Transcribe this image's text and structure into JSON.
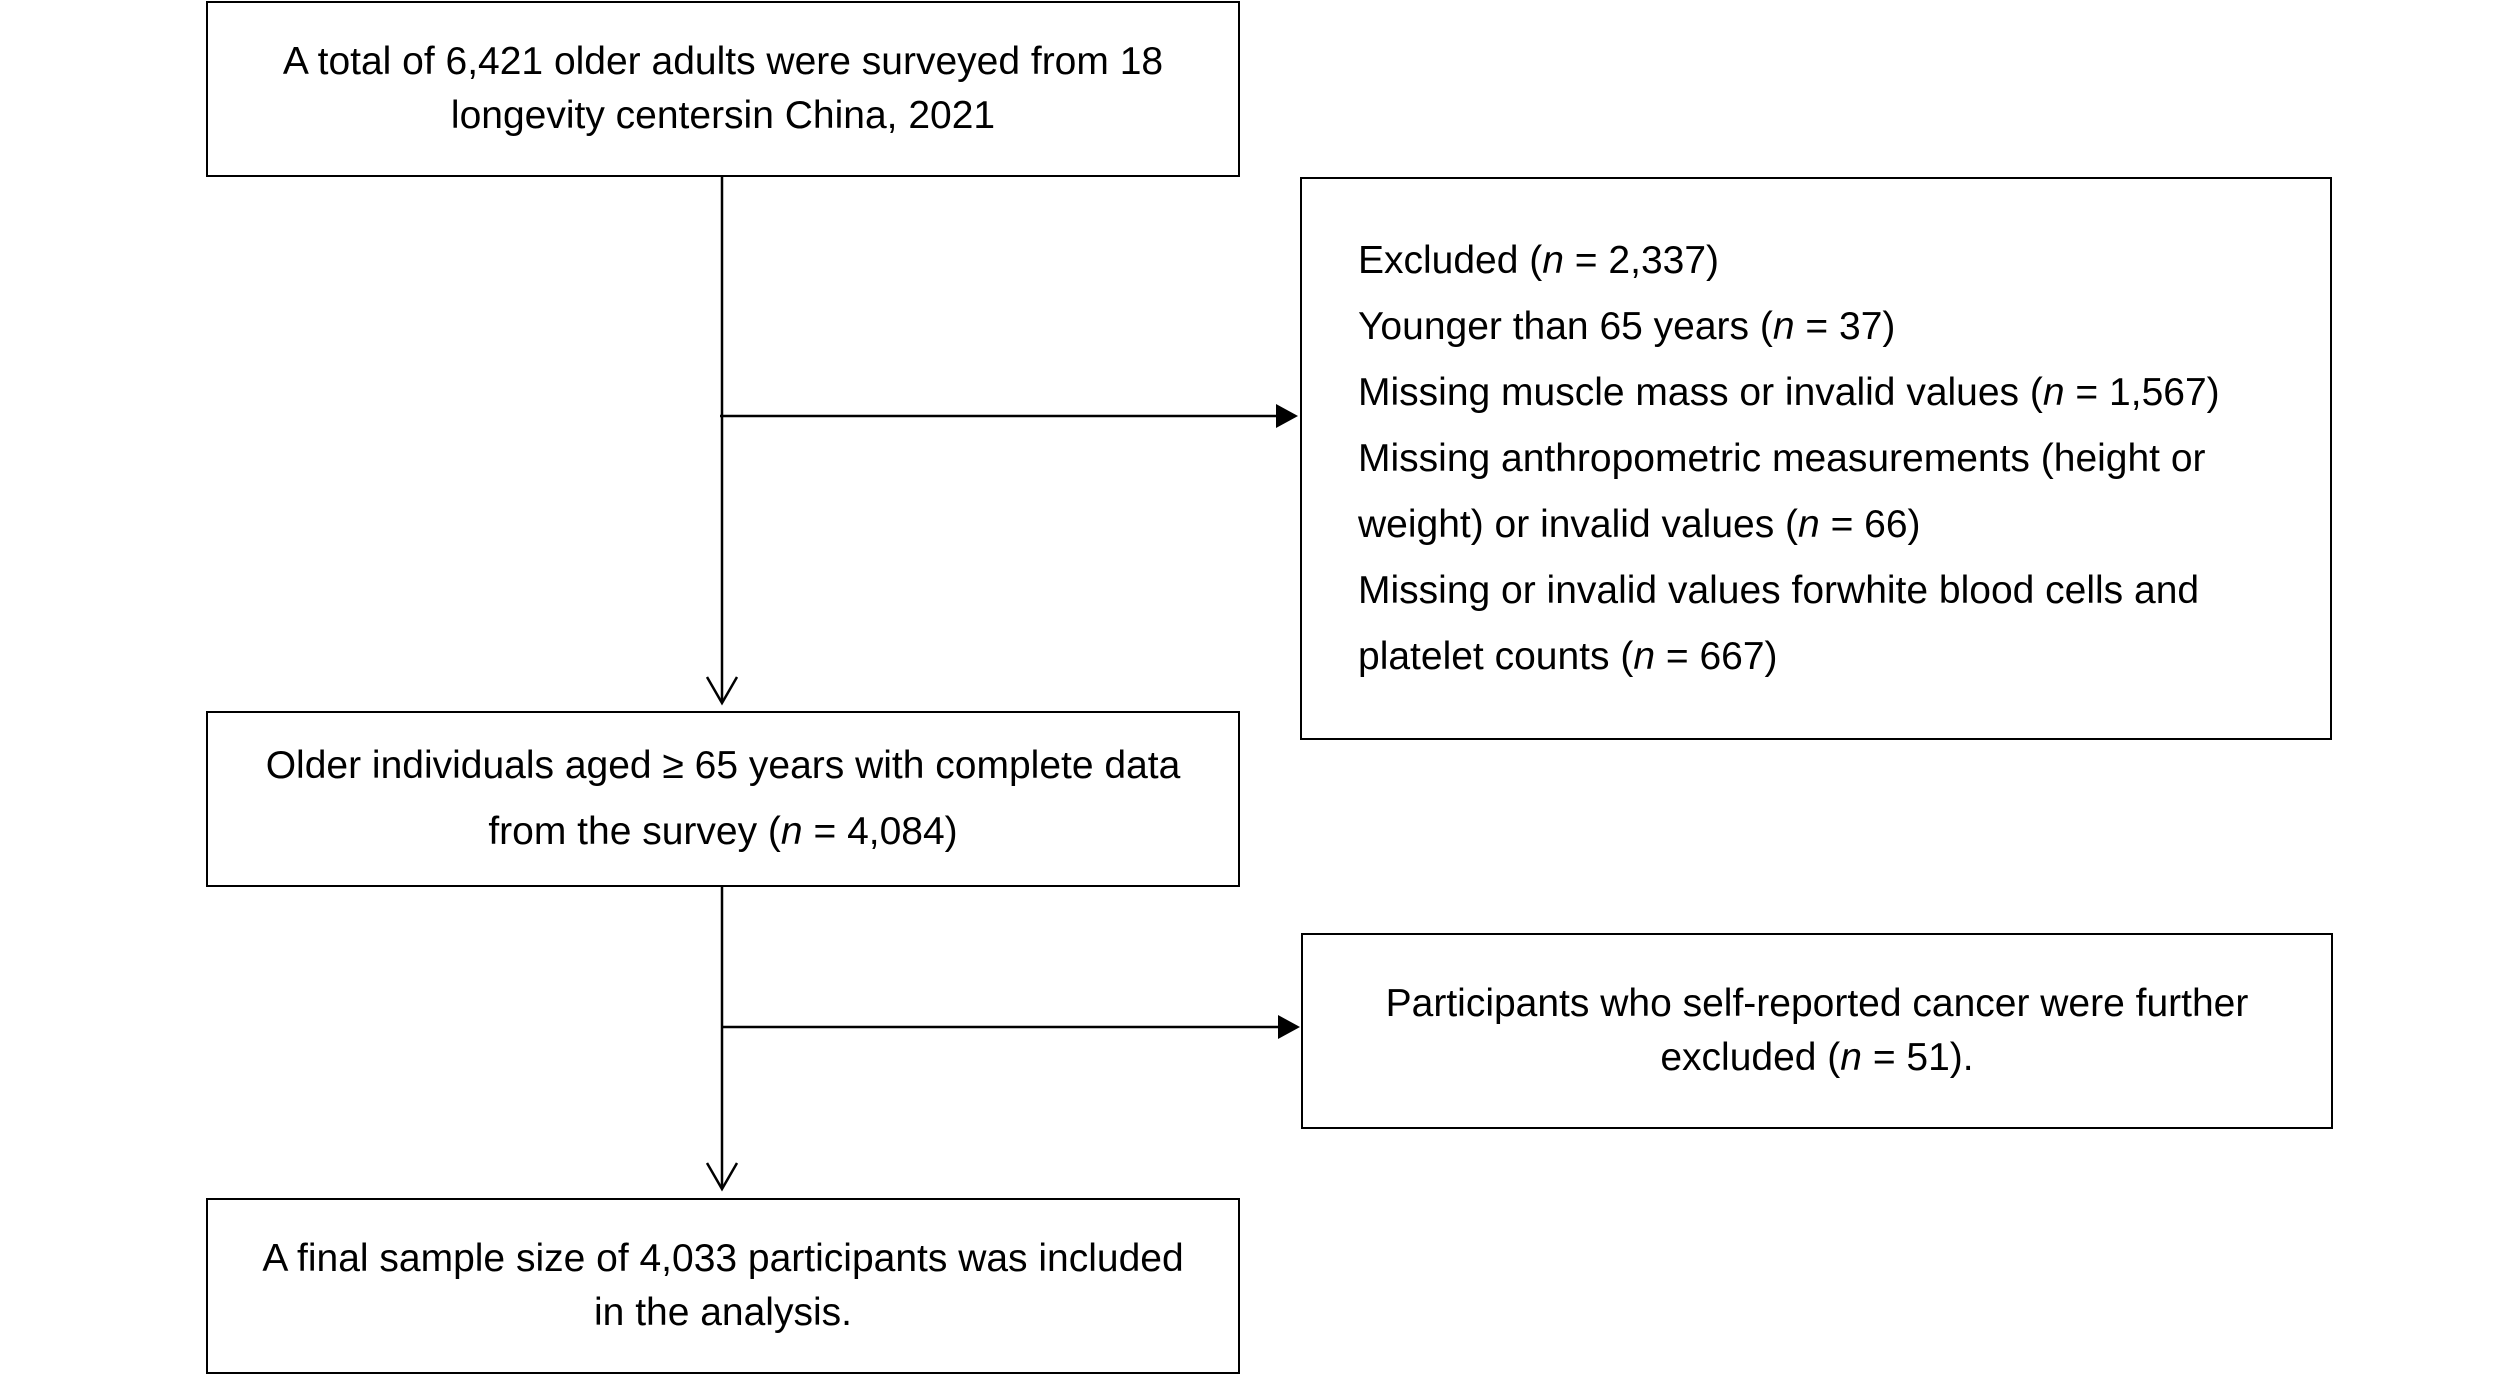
{
  "boxes": {
    "start": {
      "line1": "A total of 6,421 older adults were surveyed from 18",
      "line2": "longevity centersin China, 2021"
    },
    "exclusion1": {
      "line1_pre": "Excluded (",
      "line1_n": "n",
      "line1_post": " = 2,337)",
      "line2_pre": "Younger than 65 years (",
      "line2_n": "n",
      "line2_post": " = 37)",
      "line3_pre": "Missing muscle mass or invalid values (",
      "line3_n": "n",
      "line3_post": " = 1,567)",
      "line4": "Missing anthropometric measurements (height or",
      "line5_pre": "weight) or invalid values (",
      "line5_n": "n",
      "line5_post": " = 66)",
      "line6": "Missing or invalid values forwhite blood cells and",
      "line7_pre": "platelet counts (",
      "line7_n": "n",
      "line7_post": " = 667)"
    },
    "middle": {
      "line1": "Older individuals aged ≥ 65 years with complete data",
      "line2_pre": "from the survey (",
      "line2_n": "n",
      "line2_post": " = 4,084)"
    },
    "exclusion2": {
      "line1": "Participants who self-reported cancer were further",
      "line2_pre": "excluded (",
      "line2_n": "n",
      "line2_post": " = 51)."
    },
    "final": {
      "line1": "A final sample size of 4,033 participants was included",
      "line2": "in the analysis."
    }
  }
}
